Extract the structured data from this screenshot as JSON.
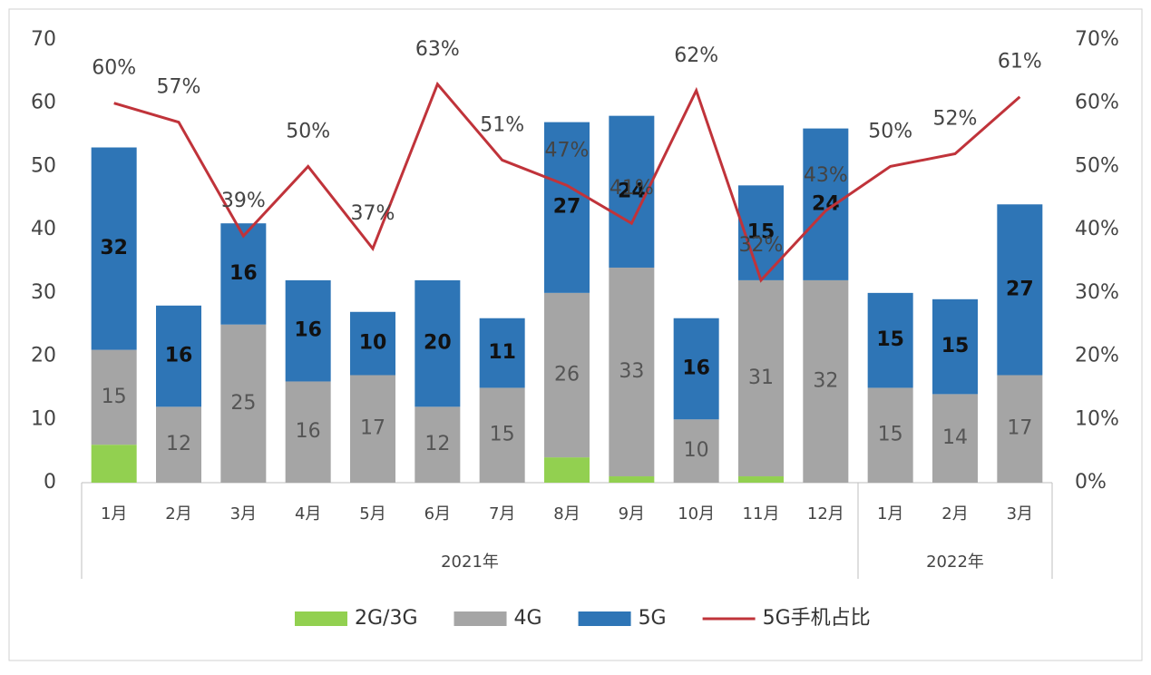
{
  "chart_data": {
    "type": "stacked-bar-line",
    "categories": [
      "1月",
      "2月",
      "3月",
      "4月",
      "5月",
      "6月",
      "7月",
      "8月",
      "9月",
      "10月",
      "11月",
      "12月",
      "1月",
      "2月",
      "3月"
    ],
    "groups": [
      {
        "name": "2021年",
        "count": 12
      },
      {
        "name": "2022年",
        "count": 3
      }
    ],
    "series": [
      {
        "name": "2G/3G",
        "color": "#92d050",
        "values": [
          6,
          0,
          0,
          0,
          0,
          0,
          0,
          4,
          1,
          0,
          1,
          0,
          0,
          0,
          0
        ]
      },
      {
        "name": "4G",
        "color": "#a5a5a5",
        "values": [
          15,
          12,
          25,
          16,
          17,
          12,
          15,
          26,
          33,
          10,
          31,
          32,
          15,
          14,
          17
        ],
        "show_labels": true
      },
      {
        "name": "5G",
        "color": "#2e75b6",
        "values": [
          32,
          16,
          16,
          16,
          10,
          20,
          11,
          27,
          24,
          16,
          15,
          24,
          15,
          15,
          27
        ],
        "show_labels": true
      },
      {
        "name": "5G手机占比",
        "color": "#c0333a",
        "axis": "y2",
        "kind": "line",
        "values": [
          60,
          57,
          39,
          50,
          37,
          63,
          51,
          47,
          41,
          62,
          32,
          43,
          50,
          52,
          61
        ],
        "value_labels": [
          "60%",
          "57%",
          "39%",
          "50%",
          "37%",
          "63%",
          "51%",
          "47%",
          "41%",
          "62%",
          "32%",
          "43%",
          "50%",
          "52%",
          "61%"
        ]
      }
    ],
    "ylim": [
      0,
      70
    ],
    "yticks": [
      0,
      10,
      20,
      30,
      40,
      50,
      60,
      70
    ],
    "y2lim": [
      0,
      70
    ],
    "y2ticks": [
      {
        "value": 0,
        "label": "0%"
      },
      {
        "value": 10,
        "label": "10%"
      },
      {
        "value": 20,
        "label": "20%"
      },
      {
        "value": 30,
        "label": "30%"
      },
      {
        "value": 40,
        "label": "40%"
      },
      {
        "value": 50,
        "label": "50%"
      },
      {
        "value": 60,
        "label": "60%"
      },
      {
        "value": 70,
        "label": "70%"
      }
    ],
    "grid": false,
    "legend": "bottom"
  }
}
